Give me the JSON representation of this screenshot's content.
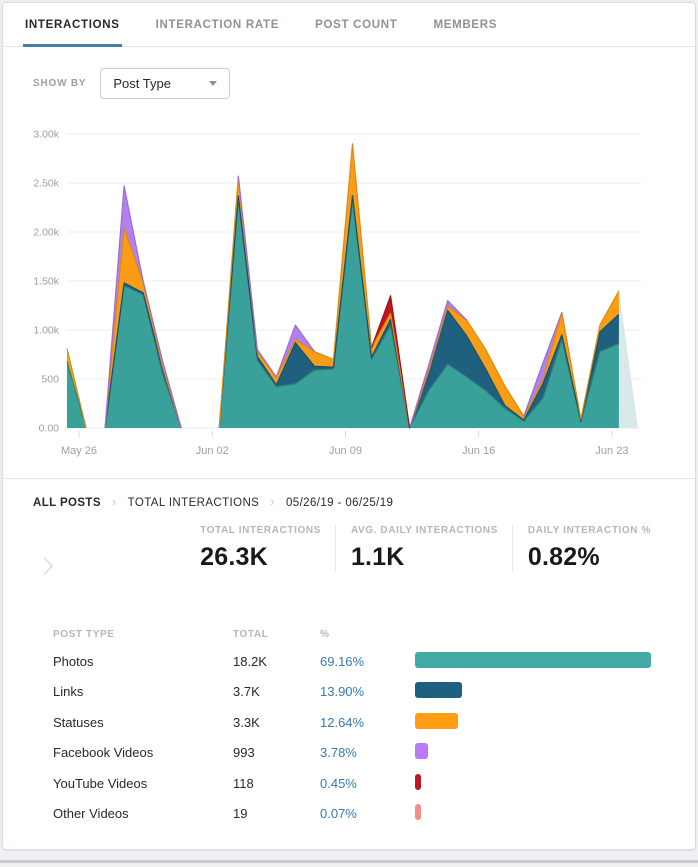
{
  "tabs": [
    {
      "label": "INTERACTIONS",
      "active": true
    },
    {
      "label": "INTERACTION RATE",
      "active": false
    },
    {
      "label": "POST COUNT",
      "active": false
    },
    {
      "label": "MEMBERS",
      "active": false
    }
  ],
  "show_by": {
    "label": "SHOW BY",
    "value": "Post Type",
    "icon": "chevron-down-icon"
  },
  "chart_data": {
    "type": "area",
    "stacked": true,
    "title": "Interactions by Post Type",
    "x_unit": "day",
    "x_range": [
      "05/26/19",
      "06/25/19"
    ],
    "x_tick_labels": [
      {
        "index": 0,
        "label": "May 26"
      },
      {
        "index": 7,
        "label": "Jun 02"
      },
      {
        "index": 14,
        "label": "Jun 09"
      },
      {
        "index": 21,
        "label": "Jun 16"
      },
      {
        "index": 28,
        "label": "Jun 23"
      }
    ],
    "y_ticks": [
      {
        "value": 0,
        "label": "0.00"
      },
      {
        "value": 500,
        "label": "500"
      },
      {
        "value": 1000,
        "label": "1.00k"
      },
      {
        "value": 1500,
        "label": "1.50k"
      },
      {
        "value": 2000,
        "label": "2.00k"
      },
      {
        "value": 2500,
        "label": "2.50k"
      },
      {
        "value": 3000,
        "label": "3.00k"
      }
    ],
    "ylim": [
      0,
      3000
    ],
    "grid": true,
    "legend": "none",
    "last_point_faded": true,
    "faded_color": "#D9E8E8",
    "series": [
      {
        "name": "Photos",
        "color": "#3AA19A",
        "stroke": "#2E837D",
        "values": [
          680,
          0,
          0,
          1450,
          1360,
          560,
          0,
          0,
          0,
          2330,
          690,
          420,
          450,
          590,
          600,
          2330,
          700,
          1040,
          0,
          380,
          650,
          520,
          380,
          200,
          70,
          300,
          900,
          60,
          780,
          860,
          0
        ]
      },
      {
        "name": "Links",
        "color": "#20607F",
        "stroke": "#1A4F69",
        "values": [
          0,
          0,
          0,
          30,
          20,
          60,
          0,
          0,
          0,
          40,
          40,
          20,
          420,
          40,
          20,
          40,
          20,
          70,
          0,
          180,
          550,
          420,
          220,
          30,
          10,
          150,
          50,
          10,
          200,
          300,
          0
        ]
      },
      {
        "name": "Statuses",
        "color": "#F99C16",
        "stroke": "#DD8A0F",
        "values": [
          130,
          0,
          0,
          560,
          100,
          20,
          0,
          0,
          0,
          200,
          50,
          80,
          30,
          150,
          80,
          530,
          100,
          60,
          0,
          20,
          40,
          160,
          200,
          200,
          40,
          40,
          230,
          20,
          70,
          240,
          0
        ]
      },
      {
        "name": "Facebook Videos",
        "color": "#B181EE",
        "stroke": "#9B6BD9",
        "values": [
          0,
          0,
          0,
          430,
          20,
          60,
          0,
          0,
          0,
          0,
          20,
          0,
          150,
          0,
          0,
          0,
          0,
          0,
          0,
          60,
          60,
          0,
          0,
          0,
          0,
          170,
          0,
          0,
          0,
          0,
          0
        ]
      },
      {
        "name": "YouTube Videos",
        "color": "#C0161D",
        "stroke": "#A01218",
        "values": [
          0,
          0,
          0,
          0,
          0,
          0,
          0,
          0,
          0,
          0,
          0,
          0,
          0,
          0,
          0,
          0,
          0,
          180,
          0,
          0,
          0,
          0,
          0,
          0,
          0,
          0,
          0,
          0,
          0,
          0,
          0
        ]
      },
      {
        "name": "Other Videos",
        "color": "#F48C8C",
        "stroke": "#E07A7A",
        "values": [
          0,
          0,
          0,
          0,
          0,
          0,
          0,
          0,
          0,
          0,
          0,
          0,
          0,
          0,
          0,
          0,
          0,
          0,
          0,
          0,
          0,
          0,
          0,
          0,
          0,
          0,
          0,
          0,
          0,
          0,
          0
        ]
      }
    ]
  },
  "breadcrumb": {
    "items": [
      "ALL POSTS",
      "TOTAL INTERACTIONS",
      "05/26/19 - 06/25/19"
    ],
    "separator_icon": "chevron-right-icon"
  },
  "pager": {
    "icon": "chevron-right-icon"
  },
  "stats": [
    {
      "label": "TOTAL INTERACTIONS",
      "value": "26.3K"
    },
    {
      "label": "AVG. DAILY INTERACTIONS",
      "value": "1.1K"
    },
    {
      "label": "DAILY INTERACTION %",
      "value": "0.82%"
    }
  ],
  "table": {
    "headers": [
      "POST TYPE",
      "TOTAL",
      "%"
    ],
    "rows": [
      {
        "label": "Photos",
        "total": "18.2K",
        "pct": "69.16%",
        "pct_value": 69.16,
        "color": "#44ABA4"
      },
      {
        "label": "Links",
        "total": "3.7K",
        "pct": "13.90%",
        "pct_value": 13.9,
        "color": "#1F5F80"
      },
      {
        "label": "Statuses",
        "total": "3.3K",
        "pct": "12.64%",
        "pct_value": 12.64,
        "color": "#FF9E12"
      },
      {
        "label": "Facebook Videos",
        "total": "993",
        "pct": "3.78%",
        "pct_value": 3.78,
        "color": "#B77CF3"
      },
      {
        "label": "YouTube Videos",
        "total": "118",
        "pct": "0.45%",
        "pct_value": 0.45,
        "color": "#C0161D"
      },
      {
        "label": "Other Videos",
        "total": "19",
        "pct": "0.07%",
        "pct_value": 0.07,
        "color": "#F48C8C"
      }
    ]
  },
  "colors": {
    "tab_underline": "#447FA8",
    "pct_link": "#3779B5",
    "grid_line": "#eceeef",
    "axis_text": "#9aa0a4"
  }
}
